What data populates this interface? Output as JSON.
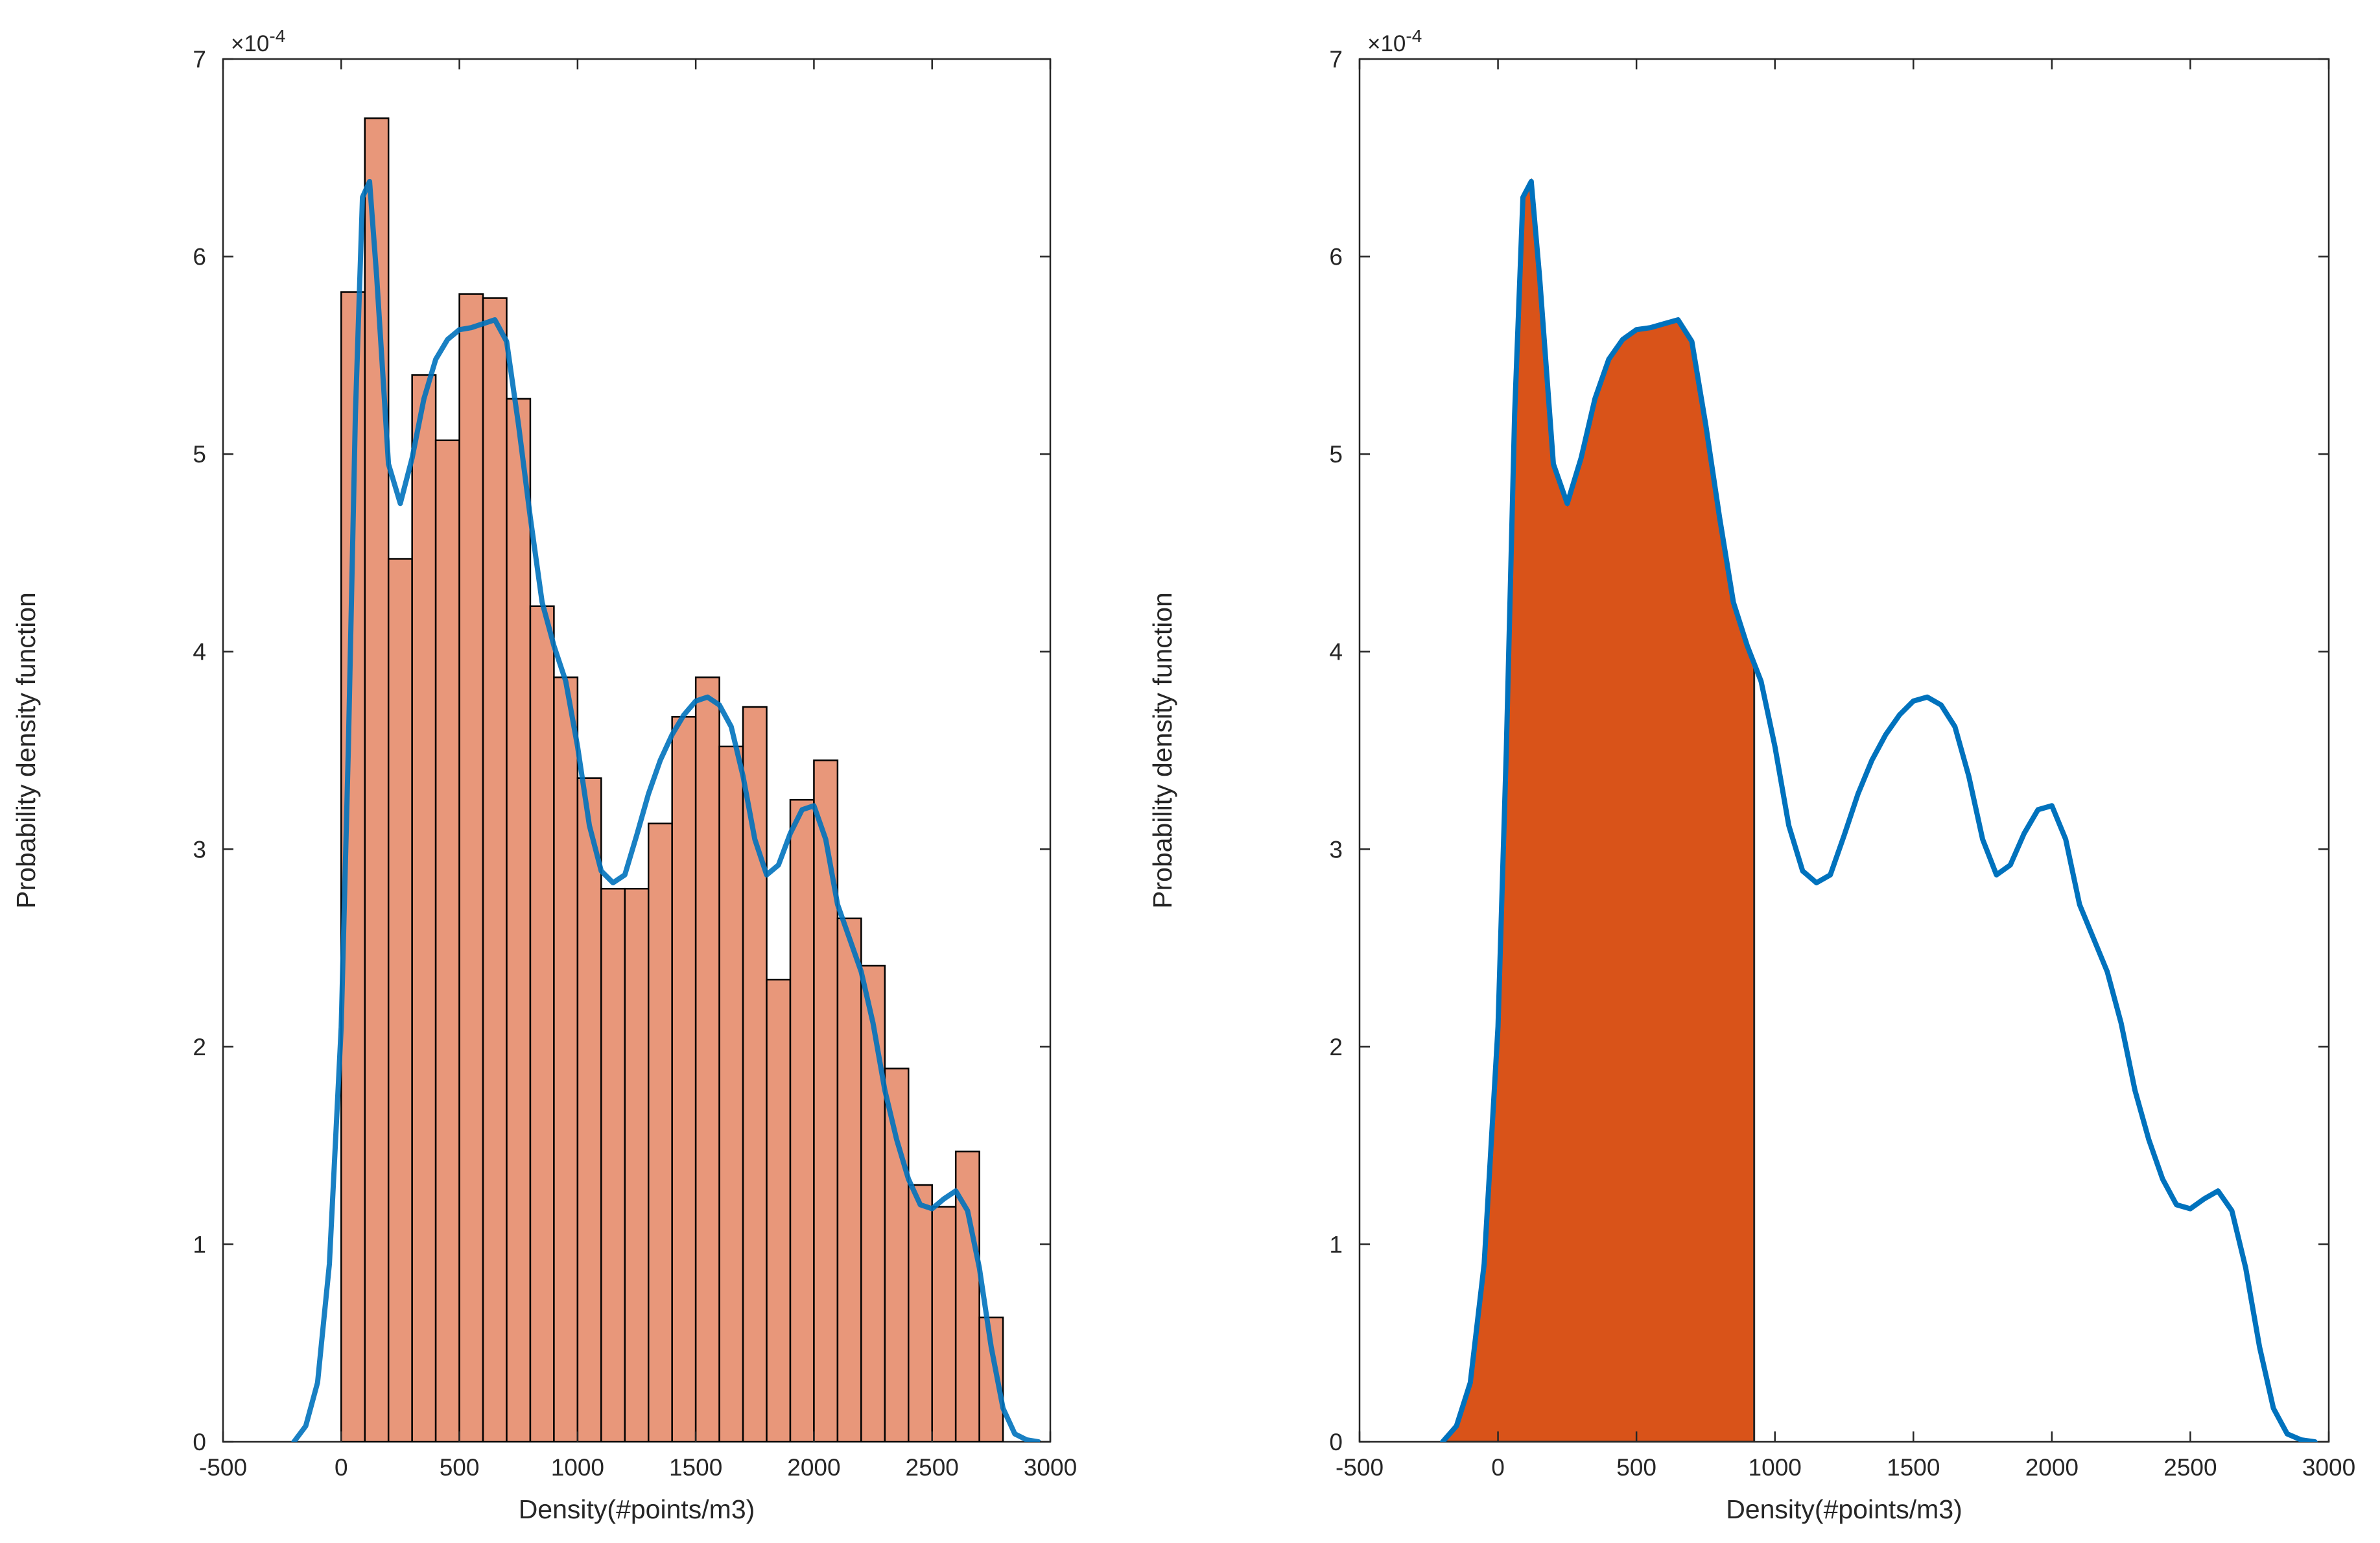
{
  "chart_data": [
    {
      "type": "bar",
      "xlabel": "Density(#points/m3)",
      "ylabel": "Probability density function",
      "xlim": [
        -500,
        3000
      ],
      "ylim": [
        0,
        0.0007
      ],
      "xticks": [
        -500,
        0,
        500,
        1000,
        1500,
        2000,
        2500,
        3000
      ],
      "xtick_labels": [
        "-500",
        "0",
        "500",
        "1000",
        "1500",
        "2000",
        "2500",
        "3000"
      ],
      "yticks": [
        0,
        0.0001,
        0.0002,
        0.0003,
        0.0004,
        0.0005,
        0.0006,
        0.0007
      ],
      "ytick_labels": [
        "0",
        "1",
        "2",
        "3",
        "4",
        "5",
        "6",
        "7"
      ],
      "y_exponent_label": "×10",
      "y_exponent_power": "-4",
      "grid": false,
      "histogram": {
        "bin_edges": [
          0,
          100,
          200,
          300,
          400,
          500,
          600,
          700,
          800,
          900,
          1000,
          1100,
          1200,
          1300,
          1400,
          1500,
          1600,
          1700,
          1800,
          1900,
          2000,
          2100,
          2200,
          2300,
          2400,
          2500,
          2600,
          2700,
          2800
        ],
        "values": [
          0.000582,
          0.00067,
          0.000447,
          0.00054,
          0.000507,
          0.000581,
          0.000579,
          0.000528,
          0.000423,
          0.000387,
          0.000336,
          0.00028,
          0.00028,
          0.000313,
          0.000367,
          0.000387,
          0.000352,
          0.000372,
          0.000234,
          0.000325,
          0.000345,
          0.000265,
          0.000241,
          0.000189,
          0.00013,
          0.000119,
          0.000147,
          6.3e-05
        ],
        "color": "#e8977a"
      },
      "series": [
        {
          "type": "line",
          "color": "#0072bd",
          "x": [
            -200,
            -150,
            -100,
            -50,
            0,
            30,
            60,
            90,
            120,
            150,
            200,
            250,
            300,
            350,
            400,
            450,
            500,
            550,
            600,
            650,
            700,
            750,
            800,
            850,
            900,
            950,
            1000,
            1050,
            1100,
            1150,
            1200,
            1250,
            1300,
            1350,
            1400,
            1450,
            1500,
            1550,
            1600,
            1650,
            1700,
            1750,
            1800,
            1850,
            1900,
            1950,
            2000,
            2050,
            2100,
            2150,
            2200,
            2250,
            2300,
            2350,
            2400,
            2450,
            2500,
            2550,
            2600,
            2650,
            2700,
            2750,
            2800,
            2850,
            2900,
            2950
          ],
          "y": [
            0.0,
            8e-06,
            3e-05,
            9e-05,
            0.00021,
            0.00035,
            0.00052,
            0.00063,
            0.000638,
            0.00059,
            0.000495,
            0.000475,
            0.000498,
            0.000528,
            0.000548,
            0.000558,
            0.000563,
            0.000564,
            0.000566,
            0.000568,
            0.000557,
            0.000515,
            0.000468,
            0.000425,
            0.000403,
            0.000385,
            0.000352,
            0.000312,
            0.000289,
            0.000283,
            0.000287,
            0.000307,
            0.000328,
            0.000345,
            0.000358,
            0.000368,
            0.000375,
            0.000377,
            0.000373,
            0.000362,
            0.000337,
            0.000305,
            0.000287,
            0.000292,
            0.000308,
            0.00032,
            0.000322,
            0.000305,
            0.000272,
            0.000255,
            0.000238,
            0.000212,
            0.000178,
            0.000153,
            0.000133,
            0.00012,
            0.000118,
            0.000123,
            0.000127,
            0.000117,
            8.8e-05,
            4.8e-05,
            1.7e-05,
            4e-06,
            1e-06,
            0.0
          ]
        }
      ]
    },
    {
      "type": "area",
      "xlabel": "Density(#points/m3)",
      "ylabel": "Probability density function",
      "xlim": [
        -500,
        3000
      ],
      "ylim": [
        0,
        0.0007
      ],
      "xticks": [
        -500,
        0,
        500,
        1000,
        1500,
        2000,
        2500,
        3000
      ],
      "xtick_labels": [
        "-500",
        "0",
        "500",
        "1000",
        "1500",
        "2000",
        "2500",
        "3000"
      ],
      "yticks": [
        0,
        0.0001,
        0.0002,
        0.0003,
        0.0004,
        0.0005,
        0.0006,
        0.0007
      ],
      "ytick_labels": [
        "0",
        "1",
        "2",
        "3",
        "4",
        "5",
        "6",
        "7"
      ],
      "y_exponent_label": "×10",
      "y_exponent_power": "-4",
      "grid": false,
      "shaded_region": {
        "x_from": -200,
        "x_to": 925,
        "color": "#d95319"
      },
      "series": [
        {
          "type": "line",
          "color": "#0072bd",
          "x": [
            -200,
            -150,
            -100,
            -50,
            0,
            30,
            60,
            90,
            120,
            150,
            200,
            250,
            300,
            350,
            400,
            450,
            500,
            550,
            600,
            650,
            700,
            750,
            800,
            850,
            900,
            950,
            1000,
            1050,
            1100,
            1150,
            1200,
            1250,
            1300,
            1350,
            1400,
            1450,
            1500,
            1550,
            1600,
            1650,
            1700,
            1750,
            1800,
            1850,
            1900,
            1950,
            2000,
            2050,
            2100,
            2150,
            2200,
            2250,
            2300,
            2350,
            2400,
            2450,
            2500,
            2550,
            2600,
            2650,
            2700,
            2750,
            2800,
            2850,
            2900,
            2950
          ],
          "y": [
            0.0,
            8e-06,
            3e-05,
            9e-05,
            0.00021,
            0.00035,
            0.00052,
            0.00063,
            0.000638,
            0.00059,
            0.000495,
            0.000475,
            0.000498,
            0.000528,
            0.000548,
            0.000558,
            0.000563,
            0.000564,
            0.000566,
            0.000568,
            0.000557,
            0.000515,
            0.000468,
            0.000425,
            0.000403,
            0.000385,
            0.000352,
            0.000312,
            0.000289,
            0.000283,
            0.000287,
            0.000307,
            0.000328,
            0.000345,
            0.000358,
            0.000368,
            0.000375,
            0.000377,
            0.000373,
            0.000362,
            0.000337,
            0.000305,
            0.000287,
            0.000292,
            0.000308,
            0.00032,
            0.000322,
            0.000305,
            0.000272,
            0.000255,
            0.000238,
            0.000212,
            0.000178,
            0.000153,
            0.000133,
            0.00012,
            0.000118,
            0.000123,
            0.000127,
            0.000117,
            8.8e-05,
            4.8e-05,
            1.7e-05,
            4e-06,
            1e-06,
            0.0
          ]
        }
      ]
    }
  ]
}
